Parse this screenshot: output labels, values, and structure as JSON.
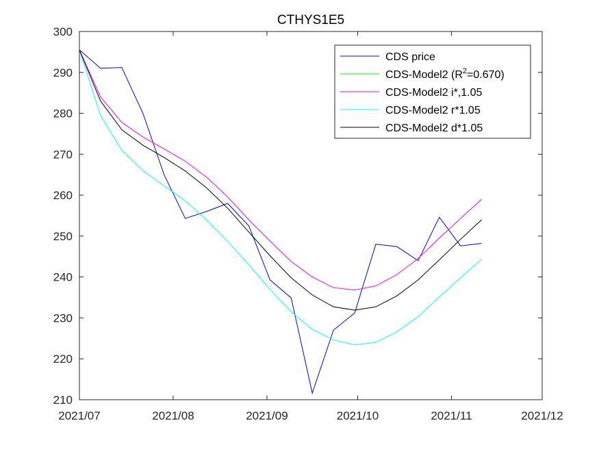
{
  "chart_data": {
    "type": "line",
    "title": "CTHYS1E5",
    "xlabel": "",
    "ylabel": "",
    "xlim": [
      "2021/07",
      "2021/12"
    ],
    "ylim": [
      210,
      300
    ],
    "x_ticks": [
      "2021/07",
      "2021/08",
      "2021/09",
      "2021/10",
      "2021/11",
      "2021/12"
    ],
    "y_ticks": [
      210,
      220,
      230,
      240,
      250,
      260,
      270,
      280,
      290,
      300
    ],
    "grid": false,
    "legend_position": "top-right",
    "series": [
      {
        "name": "CDS price",
        "color": "#0000ff",
        "points": [
          [
            "2021-07-01",
            295.5
          ],
          [
            "2021-07-08",
            291.0
          ],
          [
            "2021-07-15",
            291.2
          ],
          [
            "2021-07-22",
            280.0
          ],
          [
            "2021-07-29",
            265.0
          ],
          [
            "2021-08-05",
            254.3
          ],
          [
            "2021-08-12",
            256.0
          ],
          [
            "2021-08-19",
            258.0
          ],
          [
            "2021-08-26",
            252.5
          ],
          [
            "2021-09-02",
            239.3
          ],
          [
            "2021-09-09",
            234.9
          ],
          [
            "2021-09-16",
            211.6
          ],
          [
            "2021-09-23",
            227.0
          ],
          [
            "2021-09-30",
            231.2
          ],
          [
            "2021-10-07",
            248.0
          ],
          [
            "2021-10-14",
            247.4
          ],
          [
            "2021-10-21",
            244.0
          ],
          [
            "2021-10-28",
            254.6
          ],
          [
            "2021-11-04",
            247.6
          ],
          [
            "2021-11-11",
            248.2
          ]
        ]
      },
      {
        "name": "CDS-Model2 (R",
        "legend_sup": "2",
        "legend_suffix": "=0.670)",
        "color": "#00ff00",
        "points": []
      },
      {
        "name": "CDS-Model2 i*,1.05",
        "color": "#ff00ff",
        "points": [
          [
            "2021-07-01",
            295.5
          ],
          [
            "2021-07-08",
            284.0
          ],
          [
            "2021-07-15",
            277.8
          ],
          [
            "2021-07-22",
            274.2
          ],
          [
            "2021-07-29",
            271.3
          ],
          [
            "2021-08-05",
            268.3
          ],
          [
            "2021-08-12",
            264.4
          ],
          [
            "2021-08-19",
            259.6
          ],
          [
            "2021-08-26",
            254.0
          ],
          [
            "2021-09-02",
            248.8
          ],
          [
            "2021-09-09",
            243.8
          ],
          [
            "2021-09-16",
            240.0
          ],
          [
            "2021-09-23",
            237.4
          ],
          [
            "2021-09-30",
            236.8
          ],
          [
            "2021-10-07",
            237.8
          ],
          [
            "2021-10-14",
            240.6
          ],
          [
            "2021-10-21",
            244.5
          ],
          [
            "2021-10-28",
            249.5
          ],
          [
            "2021-11-04",
            254.3
          ],
          [
            "2021-11-11",
            259.0
          ]
        ]
      },
      {
        "name": "CDS-Model2 r*1.05",
        "color": "#00ffff",
        "points": [
          [
            "2021-07-01",
            295.5
          ],
          [
            "2021-07-08",
            279.5
          ],
          [
            "2021-07-15",
            271.0
          ],
          [
            "2021-07-22",
            266.0
          ],
          [
            "2021-07-29",
            262.3
          ],
          [
            "2021-08-05",
            258.6
          ],
          [
            "2021-08-12",
            254.0
          ],
          [
            "2021-08-19",
            248.7
          ],
          [
            "2021-08-26",
            243.0
          ],
          [
            "2021-09-02",
            237.0
          ],
          [
            "2021-09-09",
            231.5
          ],
          [
            "2021-09-16",
            227.2
          ],
          [
            "2021-09-23",
            224.6
          ],
          [
            "2021-09-30",
            223.4
          ],
          [
            "2021-10-07",
            224.0
          ],
          [
            "2021-10-14",
            226.6
          ],
          [
            "2021-10-21",
            230.3
          ],
          [
            "2021-10-28",
            235.1
          ],
          [
            "2021-11-04",
            239.8
          ],
          [
            "2021-11-11",
            244.3
          ]
        ]
      },
      {
        "name": "CDS-Model2 d*1.05",
        "color": "#000000",
        "points": [
          [
            "2021-07-01",
            295.5
          ],
          [
            "2021-07-08",
            283.0
          ],
          [
            "2021-07-15",
            276.0
          ],
          [
            "2021-07-22",
            272.2
          ],
          [
            "2021-07-29",
            269.2
          ],
          [
            "2021-08-05",
            265.9
          ],
          [
            "2021-08-12",
            261.8
          ],
          [
            "2021-08-19",
            256.8
          ],
          [
            "2021-08-26",
            251.0
          ],
          [
            "2021-09-02",
            245.2
          ],
          [
            "2021-09-09",
            239.8
          ],
          [
            "2021-09-16",
            235.6
          ],
          [
            "2021-09-23",
            232.7
          ],
          [
            "2021-09-30",
            231.9
          ],
          [
            "2021-10-07",
            232.7
          ],
          [
            "2021-10-14",
            235.4
          ],
          [
            "2021-10-21",
            239.3
          ],
          [
            "2021-10-28",
            244.2
          ],
          [
            "2021-11-04",
            249.2
          ],
          [
            "2021-11-11",
            254.0
          ]
        ]
      }
    ]
  }
}
